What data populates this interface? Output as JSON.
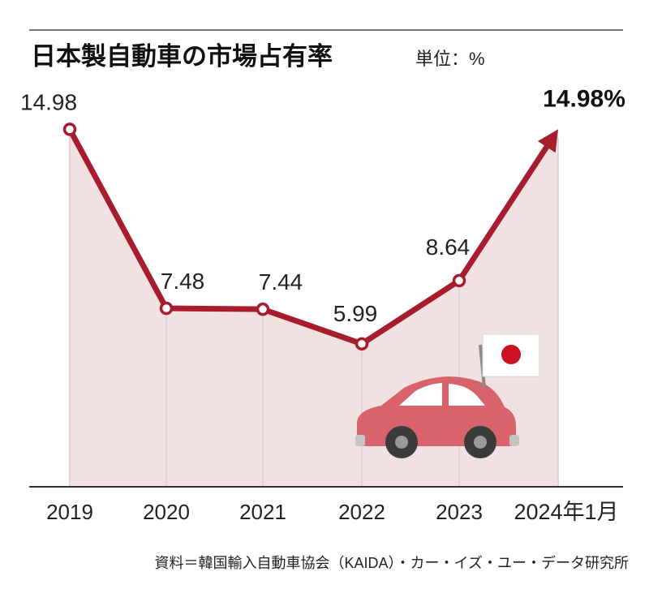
{
  "chart_data": {
    "type": "line",
    "title": "日本製自動車の市場占有率",
    "unit_label": "単位：%",
    "categories": [
      "2019",
      "2020",
      "2021",
      "2022",
      "2023",
      "2024年1月"
    ],
    "values": [
      14.98,
      7.48,
      7.44,
      5.99,
      8.64,
      14.98
    ],
    "value_labels": [
      "14.98",
      "7.48",
      "7.44",
      "5.99",
      "8.64",
      "14.98%"
    ],
    "ylim": [
      0,
      17
    ],
    "grid": false,
    "source": "資料＝韓国輸入自動車協会（KAIDA）・カー・イズ・ユー・データ研究所"
  },
  "colors": {
    "line": "#a81d2e",
    "area": "#f1e1e0",
    "axis": "#333333",
    "car_body": "#d9636c",
    "car_window": "#ffffff",
    "flag_sun": "#cc1122"
  },
  "illustration": {
    "icons": [
      "car-icon",
      "japan-flag-icon"
    ]
  }
}
